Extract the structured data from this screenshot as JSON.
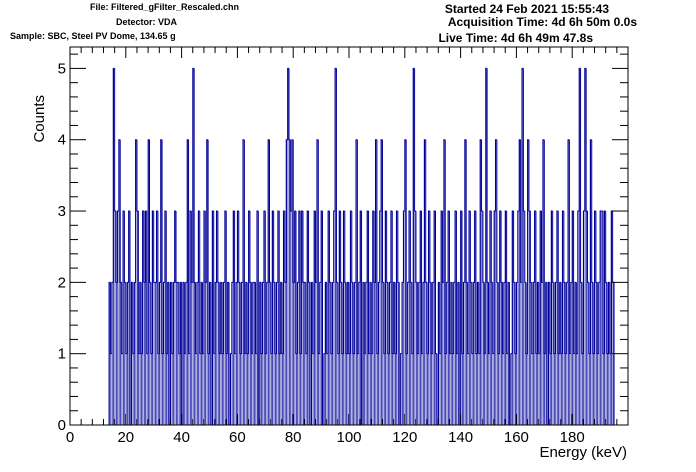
{
  "header": {
    "file": "File: Filtered_gFilter_Rescaled.chn",
    "detector": "Detector: VDA",
    "sample": "Sample: SBC, Steel PV Dome, 134.65 g",
    "started": "Started 24 Feb 2021 15:55:43",
    "acquisition_time": "Acquisition Time: 4d 6h 50m 0.0s",
    "live_time": "Live Time: 4d 6h 49m 47.8s"
  },
  "chart_data": {
    "type": "bar",
    "title": "",
    "xlabel": "Energy (keV)",
    "ylabel": "Counts",
    "xlim": [
      0,
      200
    ],
    "ylim": [
      0,
      5.3
    ],
    "x_ticks": [
      0,
      20,
      40,
      60,
      80,
      100,
      120,
      140,
      160,
      180
    ],
    "y_ticks": [
      0,
      1,
      2,
      3,
      4,
      5
    ],
    "bin_width_keV": 0.5,
    "x_start_keV": 14,
    "color": "#000099",
    "values": [
      2,
      1,
      2,
      5,
      3,
      2,
      3,
      4,
      2,
      1,
      3,
      2,
      1,
      2,
      3,
      0,
      2,
      1,
      2,
      4,
      3,
      1,
      2,
      1,
      3,
      2,
      3,
      1,
      4,
      2,
      1,
      3,
      2,
      2,
      3,
      1,
      2,
      4,
      1,
      2,
      3,
      1,
      2,
      0,
      2,
      1,
      2,
      3,
      2,
      2,
      1,
      2,
      0,
      2,
      1,
      2,
      4,
      1,
      3,
      2,
      5,
      2,
      1,
      2,
      3,
      1,
      2,
      1,
      3,
      2,
      4,
      1,
      2,
      0,
      3,
      1,
      2,
      3,
      2,
      1,
      2,
      1,
      2,
      3,
      1,
      2,
      0,
      1,
      2,
      3,
      1,
      2,
      3,
      2,
      1,
      2,
      4,
      1,
      2,
      1,
      3,
      2,
      1,
      2,
      2,
      1,
      3,
      0,
      2,
      1,
      2,
      3,
      1,
      2,
      4,
      2,
      1,
      3,
      2,
      1,
      2,
      3,
      1,
      2,
      1,
      3,
      2,
      4,
      5,
      4,
      3,
      4,
      2,
      3,
      1,
      2,
      3,
      1,
      3,
      2,
      2,
      1,
      3,
      2,
      0,
      2,
      1,
      3,
      2,
      4,
      1,
      2,
      3,
      0,
      1,
      2,
      1,
      3,
      2,
      1,
      2,
      3,
      5,
      2,
      1,
      3,
      2,
      1,
      3,
      2,
      1,
      2,
      1,
      3,
      2,
      1,
      2,
      4,
      1,
      2,
      3,
      0,
      2,
      1,
      2,
      3,
      1,
      2,
      1,
      3,
      2,
      4,
      1,
      2,
      3,
      4,
      2,
      1,
      3,
      2,
      1,
      2,
      3,
      1,
      2,
      1,
      3,
      2,
      0,
      1,
      2,
      3,
      4,
      1,
      2,
      3,
      2,
      1,
      5,
      3,
      2,
      1,
      2,
      3,
      1,
      2,
      4,
      2,
      1,
      3,
      2,
      1,
      2,
      3,
      1,
      0,
      2,
      1,
      3,
      2,
      4,
      1,
      2,
      3,
      1,
      2,
      1,
      2,
      3,
      1,
      2,
      0,
      3,
      1,
      2,
      4,
      2,
      1,
      3,
      2,
      1,
      2,
      3,
      1,
      2,
      1,
      4,
      3,
      2,
      1,
      5,
      2,
      1,
      3,
      2,
      1,
      3,
      4,
      2,
      1,
      3,
      2,
      1,
      2,
      3,
      1,
      2,
      0,
      1,
      3,
      2,
      1,
      2,
      3,
      4,
      2,
      5,
      3,
      2,
      1,
      4,
      3,
      2,
      1,
      2,
      3,
      1,
      2,
      1,
      3,
      2,
      4,
      1,
      2,
      0,
      2,
      1,
      3,
      2,
      1,
      2,
      3,
      1,
      2,
      1,
      3,
      2,
      1,
      2,
      4,
      1,
      2,
      3,
      1,
      2,
      1,
      3,
      5,
      2,
      1,
      3,
      5,
      3,
      2,
      1,
      4,
      2,
      1,
      3,
      2,
      1,
      2,
      3,
      3,
      1,
      3,
      2,
      1,
      2,
      1,
      3,
      2
    ]
  }
}
